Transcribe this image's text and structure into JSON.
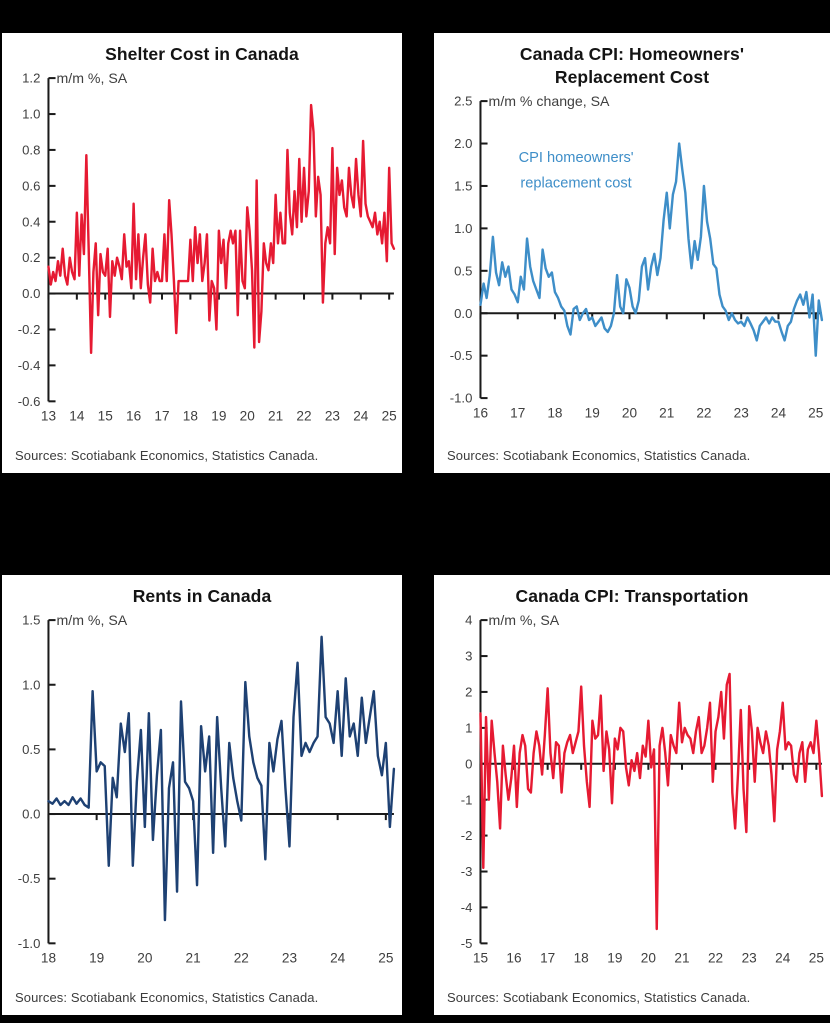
{
  "page": {
    "background": "#000000"
  },
  "chart_data": [
    {
      "type": "line",
      "title": "Shelter Cost in Canada",
      "unit_label": "m/m %, SA",
      "x_tick_labels": [
        "13",
        "14",
        "15",
        "16",
        "17",
        "18",
        "19",
        "20",
        "21",
        "22",
        "23",
        "24",
        "25"
      ],
      "ylim": [
        -0.6,
        1.2
      ],
      "yticks": [
        1.2,
        1.0,
        0.8,
        0.6,
        0.4,
        0.2,
        0.0,
        -0.2,
        -0.4,
        -0.6
      ],
      "ytick_labels": [
        "1.2",
        "1.0",
        "0.8",
        "0.6",
        "0.4",
        "0.2",
        "0.0",
        "-0.2",
        "-0.4",
        "-0.6"
      ],
      "color": "#e61a32",
      "values": [
        0.15,
        0.05,
        0.12,
        0.07,
        0.18,
        0.1,
        0.25,
        0.1,
        0.05,
        0.2,
        0.12,
        0.08,
        0.45,
        0.1,
        0.44,
        0.22,
        0.77,
        0.25,
        -0.33,
        0.12,
        0.28,
        -0.12,
        0.22,
        0.12,
        0.1,
        0.25,
        -0.13,
        0.18,
        0.1,
        0.2,
        0.15,
        0.08,
        0.33,
        0.15,
        0.18,
        0.03,
        0.5,
        0.08,
        0.33,
        0.03,
        0.2,
        0.33,
        0.05,
        -0.05,
        0.25,
        0.07,
        0.12,
        0.07,
        0.07,
        0.33,
        0.07,
        0.52,
        0.33,
        0.07,
        -0.22,
        0.07,
        0.07,
        0.07,
        0.07,
        0.07,
        0.3,
        0.07,
        0.37,
        0.17,
        0.33,
        0.07,
        0.17,
        0.33,
        -0.15,
        0.07,
        0.03,
        -0.2,
        0.35,
        0.17,
        0.3,
        0.03,
        0.28,
        0.35,
        0.28,
        0.35,
        -0.12,
        0.35,
        0.07,
        0.03,
        0.48,
        0.35,
        0.13,
        -0.3,
        0.63,
        -0.27,
        -0.1,
        0.28,
        0.17,
        0.13,
        0.28,
        0.17,
        0.55,
        0.28,
        0.45,
        0.28,
        0.28,
        0.8,
        0.45,
        0.33,
        0.57,
        0.37,
        0.75,
        0.4,
        0.7,
        0.43,
        0.57,
        1.05,
        0.9,
        0.43,
        0.65,
        0.55,
        -0.05,
        0.28,
        0.37,
        0.28,
        0.81,
        0.22,
        0.7,
        0.55,
        0.63,
        0.48,
        0.43,
        0.7,
        0.55,
        0.48,
        0.75,
        0.55,
        0.43,
        0.85,
        0.5,
        0.43,
        0.4,
        0.37,
        0.45,
        0.33,
        0.4,
        0.28,
        0.45,
        0.18,
        0.7,
        0.28,
        0.25
      ],
      "sources": "Sources: Scotiabank Economics, Statistics Canada."
    },
    {
      "type": "line",
      "title": "Canada CPI: Homeowners' Replacement Cost",
      "unit_label": "m/m % change, SA",
      "annotation": {
        "lines": [
          "CPI homeowners'",
          "replacement cost"
        ],
        "color": "#3e8ec8"
      },
      "x_tick_labels": [
        "16",
        "17",
        "18",
        "19",
        "20",
        "21",
        "22",
        "23",
        "24",
        "25"
      ],
      "ylim": [
        -1.0,
        2.5
      ],
      "yticks": [
        2.5,
        2.0,
        1.5,
        1.0,
        0.5,
        0.0,
        -0.5,
        -1.0
      ],
      "ytick_labels": [
        "2.5",
        "2.0",
        "1.5",
        "1.0",
        "0.5",
        "0.0",
        "-0.5",
        "-1.0"
      ],
      "color": "#3e8ec8",
      "values": [
        0.1,
        0.35,
        0.18,
        0.45,
        0.9,
        0.48,
        0.33,
        0.6,
        0.43,
        0.55,
        0.28,
        0.22,
        0.13,
        0.43,
        0.28,
        0.88,
        0.55,
        0.38,
        0.28,
        0.18,
        0.75,
        0.53,
        0.43,
        0.48,
        0.25,
        0.18,
        0.08,
        0.03,
        -0.15,
        -0.25,
        0.05,
        0.08,
        -0.08,
        0.0,
        0.05,
        -0.08,
        -0.05,
        -0.15,
        -0.1,
        -0.05,
        -0.18,
        -0.22,
        -0.15,
        0.0,
        0.45,
        0.08,
        0.0,
        0.4,
        0.3,
        0.08,
        0.0,
        0.15,
        0.55,
        0.65,
        0.28,
        0.55,
        0.7,
        0.45,
        0.65,
        1.1,
        1.42,
        1.0,
        1.4,
        1.55,
        2.0,
        1.7,
        1.42,
        0.88,
        0.53,
        0.85,
        0.63,
        0.9,
        1.5,
        1.08,
        0.88,
        0.58,
        0.53,
        0.22,
        0.08,
        0.03,
        -0.08,
        0.0,
        -0.08,
        -0.12,
        -0.1,
        -0.15,
        -0.05,
        -0.12,
        -0.2,
        -0.32,
        -0.15,
        -0.1,
        -0.05,
        -0.12,
        -0.05,
        -0.1,
        -0.1,
        -0.22,
        -0.32,
        -0.15,
        -0.1,
        0.05,
        0.15,
        0.22,
        0.1,
        0.25,
        -0.05,
        0.22,
        -0.5,
        0.15,
        -0.08
      ],
      "sources": "Sources: Scotiabank Economics, Statistics Canada."
    },
    {
      "type": "line",
      "title": "Rents in Canada",
      "unit_label": "m/m %, SA",
      "x_tick_labels": [
        "18",
        "19",
        "20",
        "21",
        "22",
        "23",
        "24",
        "25"
      ],
      "ylim": [
        -1.0,
        1.5
      ],
      "yticks": [
        1.5,
        1.0,
        0.5,
        0.0,
        -0.5,
        -1.0
      ],
      "ytick_labels": [
        "1.5",
        "1.0",
        "0.5",
        "0.0",
        "-0.5",
        "-1.0"
      ],
      "color": "#1e4173",
      "values": [
        0.1,
        0.08,
        0.12,
        0.07,
        0.1,
        0.07,
        0.13,
        0.08,
        0.12,
        0.07,
        0.05,
        0.95,
        0.33,
        0.4,
        0.37,
        -0.4,
        0.28,
        0.13,
        0.7,
        0.48,
        0.78,
        -0.4,
        0.25,
        0.65,
        -0.1,
        0.78,
        -0.2,
        0.3,
        0.65,
        -0.82,
        0.2,
        0.4,
        -0.6,
        0.87,
        0.25,
        0.2,
        0.1,
        -0.55,
        0.68,
        0.33,
        0.6,
        -0.3,
        0.75,
        0.2,
        -0.25,
        0.55,
        0.28,
        0.1,
        -0.05,
        1.02,
        0.6,
        0.4,
        0.28,
        0.22,
        -0.35,
        0.55,
        0.33,
        0.58,
        0.72,
        0.2,
        -0.25,
        0.75,
        1.17,
        0.45,
        0.55,
        0.48,
        0.55,
        0.6,
        1.37,
        0.75,
        0.7,
        0.55,
        0.95,
        0.45,
        1.05,
        0.6,
        0.7,
        0.45,
        0.9,
        0.55,
        0.75,
        0.95,
        0.45,
        0.3,
        0.55,
        -0.1,
        0.35
      ],
      "sources": "Sources: Scotiabank Economics, Statistics Canada."
    },
    {
      "type": "line",
      "title": "Canada CPI: Transportation",
      "unit_label": "m/m %, SA",
      "x_tick_labels": [
        "15",
        "16",
        "17",
        "18",
        "19",
        "20",
        "21",
        "22",
        "23",
        "24",
        "25"
      ],
      "ylim": [
        -5,
        4
      ],
      "yticks": [
        4,
        3,
        2,
        1,
        0,
        -1,
        -2,
        -3,
        -4,
        -5
      ],
      "ytick_labels": [
        "4",
        "3",
        "2",
        "1",
        "0",
        "-1",
        "-2",
        "-3",
        "-4",
        "-5"
      ],
      "color": "#e61a32",
      "values": [
        1.4,
        -2.9,
        1.3,
        -1.0,
        1.2,
        0.3,
        -0.5,
        -1.8,
        0.5,
        -0.3,
        -1.0,
        -0.4,
        0.5,
        -1.2,
        0.3,
        0.8,
        0.5,
        -0.7,
        -0.8,
        0.3,
        0.9,
        0.5,
        -0.3,
        0.8,
        2.1,
        0.3,
        -0.4,
        0.6,
        0.5,
        -0.8,
        0.3,
        0.6,
        0.8,
        0.3,
        0.6,
        0.9,
        2.15,
        0.5,
        -0.5,
        -1.2,
        1.2,
        0.7,
        0.8,
        1.9,
        -0.2,
        0.9,
        0.4,
        -1.1,
        0.7,
        0.4,
        1.0,
        0.9,
        -0.1,
        -0.6,
        0.1,
        -0.2,
        0.3,
        -0.4,
        0.5,
        0.2,
        1.2,
        -0.1,
        0.4,
        -4.6,
        0.5,
        1.0,
        0.3,
        -0.6,
        0.8,
        0.5,
        0.3,
        1.7,
        0.6,
        1.0,
        0.8,
        0.7,
        0.3,
        0.9,
        1.3,
        0.3,
        0.5,
        1.0,
        1.7,
        -0.5,
        0.9,
        1.3,
        2.0,
        0.7,
        2.2,
        2.5,
        -0.8,
        -1.8,
        -0.3,
        1.5,
        -0.7,
        -1.9,
        1.6,
        0.9,
        -0.5,
        1.0,
        0.6,
        0.3,
        0.9,
        0.5,
        -0.3,
        -1.6,
        0.4,
        0.9,
        1.7,
        0.4,
        0.6,
        0.5,
        -0.3,
        -0.5,
        0.3,
        0.6,
        -0.5,
        0.4,
        0.6,
        0.3,
        1.2,
        0.3,
        -0.9
      ],
      "sources": "Sources: Scotiabank Economics, Statistics Canada."
    }
  ]
}
